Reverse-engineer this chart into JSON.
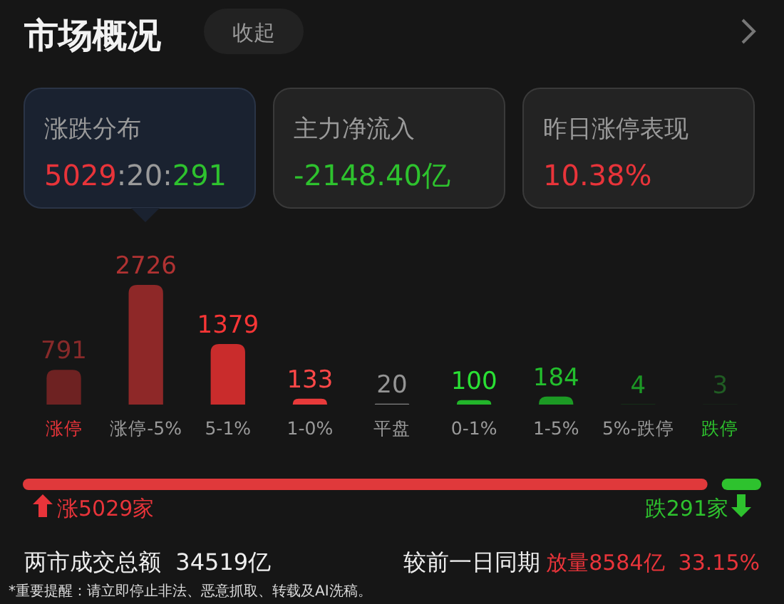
{
  "chart_data": {
    "type": "bar",
    "title": "市场概况",
    "categories": [
      "涨停",
      "涨停-5%",
      "5-1%",
      "1-0%",
      "平盘",
      "0-1%",
      "1-5%",
      "5%-跌停",
      "跌停"
    ],
    "values": [
      791,
      2726,
      1379,
      133,
      20,
      100,
      184,
      4,
      3
    ],
    "colors": [
      "#6e2222",
      "#8e2828",
      "#c92c2c",
      "#e83a3a",
      "#858585",
      "#22b52a",
      "#1c9a24",
      "#177a1e",
      "#1a4a1c"
    ],
    "data_labels": true,
    "annotations": [
      "收起",
      "涨跌分布",
      "5029:20:291",
      "主力净流入",
      "-2148.40亿",
      "昨日涨停表现",
      "10.38%",
      "涨5029家",
      "跌291家",
      "两市成交总额  34519亿",
      "较前一日同期",
      "放量8584亿  33.15%",
      "*重要提醒：请立即停止非法、恶意抓取、转载及AI洗稿。"
    ]
  }
}
